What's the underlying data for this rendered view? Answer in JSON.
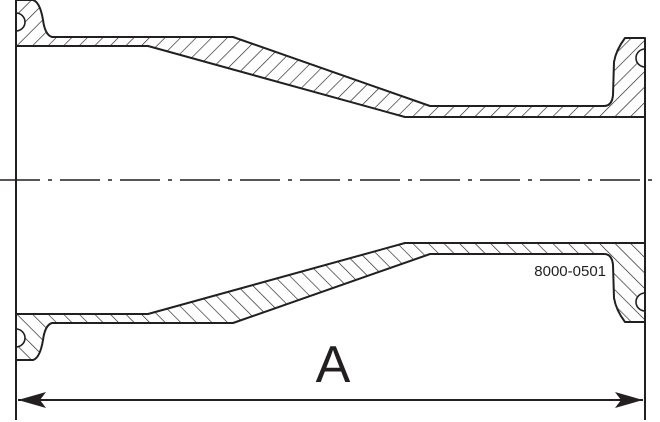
{
  "drawing": {
    "part_number": "8000-0501",
    "dimension_label": "A",
    "line_color": "#231f20",
    "background": "#ffffff"
  }
}
